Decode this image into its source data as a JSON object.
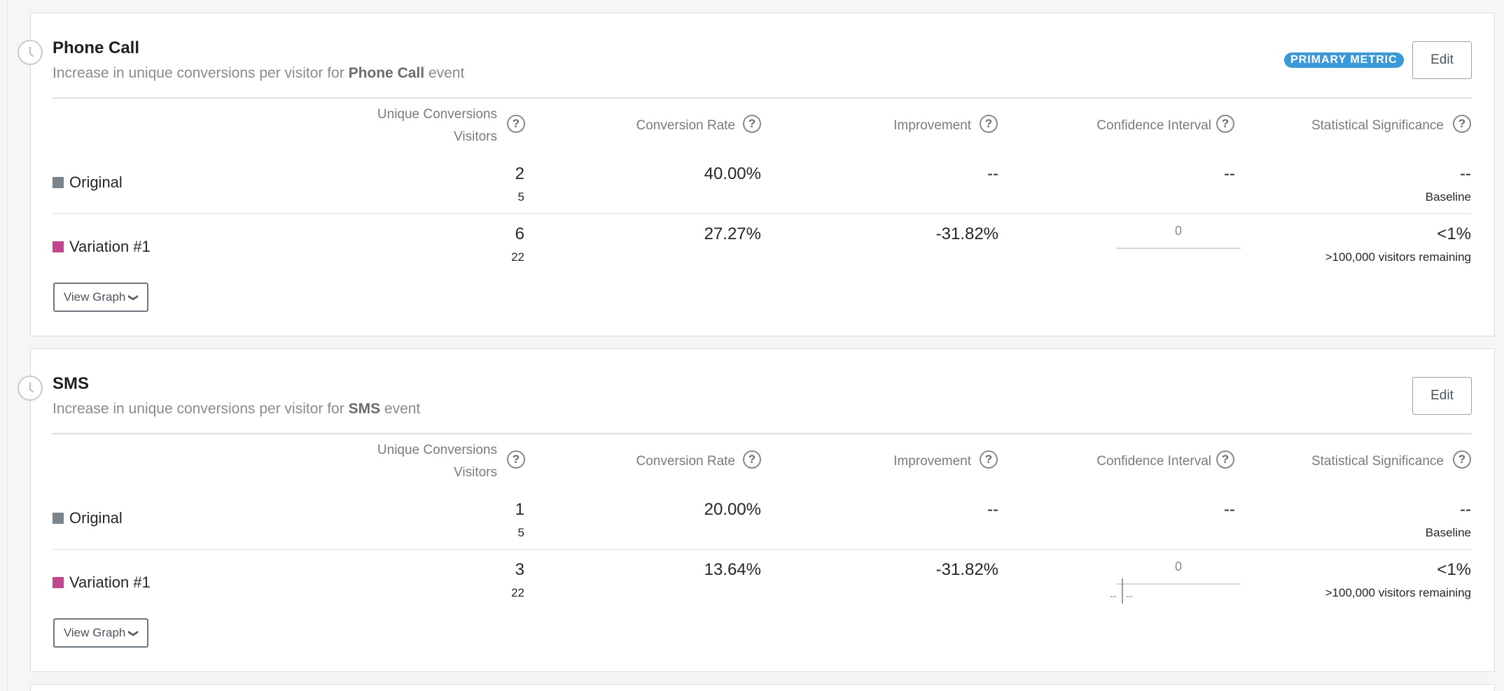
{
  "headers": {
    "unique_conversions": "Unique Conversions",
    "visitors": "Visitors",
    "conversion_rate": "Conversion Rate",
    "improvement": "Improvement",
    "confidence_interval": "Confidence Interval",
    "statistical_significance": "Statistical Significance",
    "help_glyph": "?"
  },
  "metrics": [
    {
      "title": "Phone Call",
      "subtitle_prefix": "Increase in unique conversions per visitor  for",
      "event_name": "Phone Call",
      "subtitle_suffix": "event",
      "badge": "PRIMARY METRIC",
      "edit_label": "Edit",
      "view_graph_label": "View Graph",
      "rows": [
        {
          "label": "Original",
          "color": "#7b848a",
          "conversions": "2",
          "visitors": "5",
          "conversion_rate": "40.00%",
          "improvement": "--",
          "confidence_interval": "--",
          "significance": "--",
          "significance_note": "Baseline"
        },
        {
          "label": "Variation #1",
          "color": "#c0478b",
          "conversions": "6",
          "visitors": "22",
          "conversion_rate": "27.27%",
          "improvement": "-31.82%",
          "confidence_interval": "0",
          "significance": "<1%",
          "significance_note": ">100,000 visitors remaining"
        }
      ]
    },
    {
      "title": "SMS",
      "subtitle_prefix": "Increase in unique conversions per visitor  for",
      "event_name": "SMS",
      "subtitle_suffix": "event",
      "edit_label": "Edit",
      "view_graph_label": "View Graph",
      "rows": [
        {
          "label": "Original",
          "color": "#7b848a",
          "conversions": "1",
          "visitors": "5",
          "conversion_rate": "20.00%",
          "improvement": "--",
          "confidence_interval": "--",
          "significance": "--",
          "significance_note": "Baseline"
        },
        {
          "label": "Variation #1",
          "color": "#c0478b",
          "conversions": "3",
          "visitors": "22",
          "conversion_rate": "13.64%",
          "improvement": "-31.82%",
          "confidence_interval": "0",
          "ci_low": "--",
          "ci_high": "--",
          "significance": "<1%",
          "significance_note": ">100,000 visitors remaining"
        }
      ]
    }
  ],
  "colors": {
    "primary_badge": "#3b99d8",
    "original": "#7b848a",
    "variation": "#c0478b"
  }
}
